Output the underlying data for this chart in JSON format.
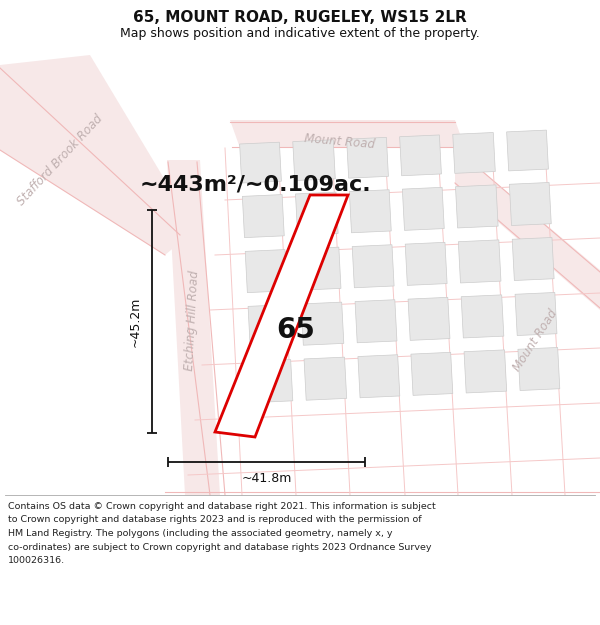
{
  "title_line1": "65, MOUNT ROAD, RUGELEY, WS15 2LR",
  "title_line2": "Map shows position and indicative extent of the property.",
  "area_text": "~443m²/~0.109ac.",
  "label_65": "65",
  "dim_width": "~41.8m",
  "dim_height": "~45.2m",
  "footer_lines": [
    "Contains OS data © Crown copyright and database right 2021. This information is subject",
    "to Crown copyright and database rights 2023 and is reproduced with the permission of",
    "HM Land Registry. The polygons (including the associated geometry, namely x, y",
    "co-ordinates) are subject to Crown copyright and database rights 2023 Ordnance Survey",
    "100026316."
  ],
  "bg_color": "#ffffff",
  "road_edge_color": "#f0b8b8",
  "road_fill_color": "#f7e8e8",
  "road_label_color": "#c0b0b0",
  "building_fill": "#e8e8e8",
  "building_edge": "#cccccc",
  "highlight_color": "#dd0000",
  "dim_color": "#111111",
  "footer_color": "#222222",
  "title_color": "#111111",
  "map_divider_color": "#f5c8c8"
}
